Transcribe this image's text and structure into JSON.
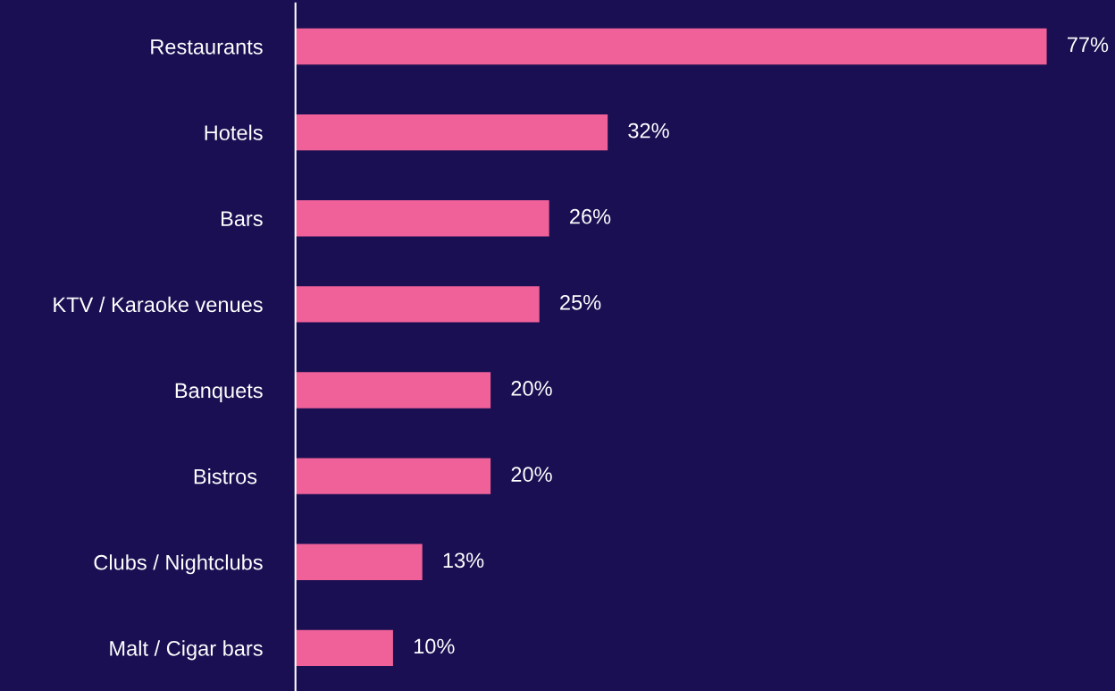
{
  "chart_data": {
    "type": "bar",
    "orientation": "horizontal",
    "categories": [
      "Restaurants",
      "Hotels",
      "Bars",
      "KTV / Karaoke venues",
      "Banquets",
      "Bistros ",
      "Clubs / Nightclubs",
      "Malt / Cigar bars"
    ],
    "values": [
      77,
      32,
      26,
      25,
      20,
      20,
      13,
      10
    ],
    "value_labels": [
      "77%",
      "32%",
      "26%",
      "25%",
      "20%",
      "20%",
      "13%",
      "10%"
    ],
    "color": "#ef6198",
    "xlim": [
      0,
      84
    ],
    "tick_labels": "y",
    "grid": false,
    "legend": false
  }
}
